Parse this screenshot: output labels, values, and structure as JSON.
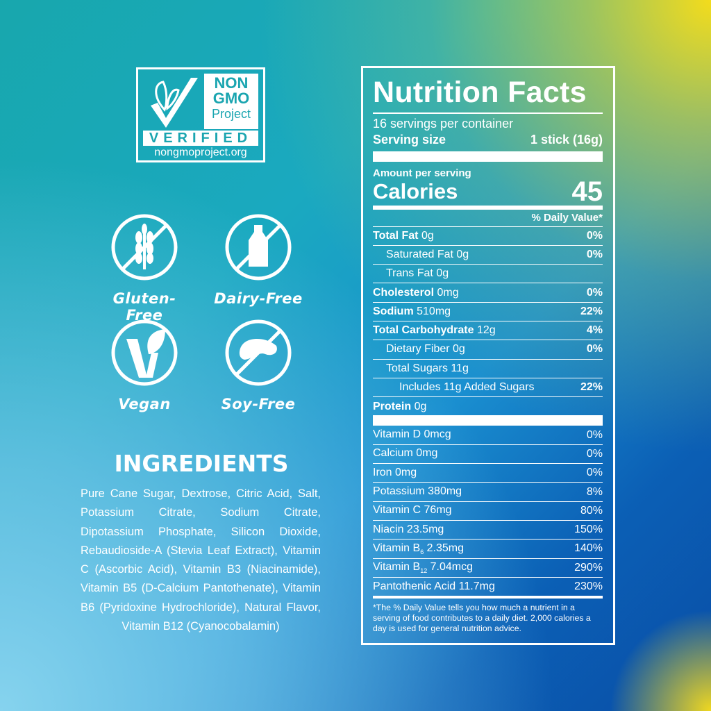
{
  "logo": {
    "line1": "NON",
    "line2": "GMO",
    "line3": "Project",
    "verified": "VERIFIED",
    "url": "nongmoproject.org"
  },
  "badges": [
    {
      "label": "Gluten-Free",
      "icon": "wheat-crossed-icon"
    },
    {
      "label": "Dairy-Free",
      "icon": "milk-bottle-crossed-icon"
    },
    {
      "label": "Vegan",
      "icon": "vegan-v-leaf-icon"
    },
    {
      "label": "Soy-Free",
      "icon": "soybean-crossed-icon"
    }
  ],
  "ingredients": {
    "title": "INGREDIENTS",
    "text": "Pure Cane Sugar, Dextrose, Citric Acid, Salt, Potassium Citrate, Sodium Citrate, Dipotassium Phosphate, Silicon Dioxide, Rebaudioside-A (Stevia Leaf Extract), Vitamin C (Ascorbic Acid), Vitamin B3 (Niacinamide), Vitamin B5 (D-Calcium Pantothenate), Vitamin B6 (Pyridoxine Hydrochloride), Natural Flavor, Vitamin B12 (Cyanocobalamin)"
  },
  "nutrition": {
    "title": "Nutrition Facts",
    "servings": "16 servings per container",
    "serving_size_label": "Serving size",
    "serving_size": "1 stick (16g)",
    "amount_per_serving": "Amount per serving",
    "calories_label": "Calories",
    "calories": "45",
    "dv_header": "% Daily Value*",
    "rows": [
      {
        "name": "Total Fat",
        "amount": "0g",
        "dv": "0%"
      },
      {
        "name": "Saturated Fat",
        "amount": "0g",
        "dv": "0%"
      },
      {
        "name": "Trans Fat",
        "amount": "0g",
        "dv": ""
      },
      {
        "name": "Cholesterol",
        "amount": "0mg",
        "dv": "0%"
      },
      {
        "name": "Sodium",
        "amount": "510mg",
        "dv": "22%"
      },
      {
        "name": "Total Carbohydrate",
        "amount": "12g",
        "dv": "4%"
      },
      {
        "name": "Dietary Fiber",
        "amount": "0g",
        "dv": "0%"
      },
      {
        "name": "Total Sugars",
        "amount": "11g",
        "dv": ""
      },
      {
        "name": "Includes 11g Added Sugars",
        "amount": "",
        "dv": "22%"
      },
      {
        "name": "Protein",
        "amount": "0g",
        "dv": ""
      }
    ],
    "vitamins": [
      {
        "name": "Vitamin D",
        "sub": "",
        "amount": "0mcg",
        "dv": "0%"
      },
      {
        "name": "Calcium",
        "sub": "",
        "amount": "0mg",
        "dv": "0%"
      },
      {
        "name": "Iron",
        "sub": "",
        "amount": "0mg",
        "dv": "0%"
      },
      {
        "name": "Potassium",
        "sub": "",
        "amount": "380mg",
        "dv": "8%"
      },
      {
        "name": "Vitamin C",
        "sub": "",
        "amount": "76mg",
        "dv": "80%"
      },
      {
        "name": "Niacin",
        "sub": "",
        "amount": "23.5mg",
        "dv": "150%"
      },
      {
        "name": "Vitamin B",
        "sub": "6",
        "amount": "2.35mg",
        "dv": "140%"
      },
      {
        "name": "Vitamin B",
        "sub": "12",
        "amount": "7.04mcg",
        "dv": "290%"
      },
      {
        "name": "Pantothenic Acid",
        "sub": "",
        "amount": "11.7mg",
        "dv": "230%"
      }
    ],
    "footnote": "*The % Daily Value tells you how much a nutrient in a serving of food contributes to a daily diet. 2,000 calories a day is used for general nutrition advice."
  }
}
